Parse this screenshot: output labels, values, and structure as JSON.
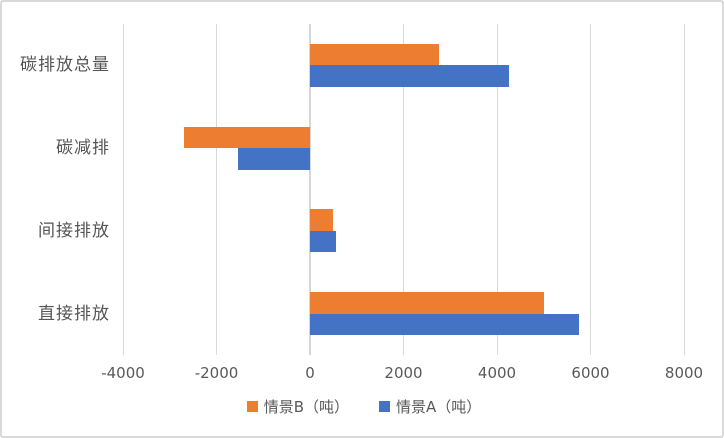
{
  "chart_data": {
    "type": "bar",
    "orientation": "horizontal",
    "title": "",
    "categories": [
      "碳排放总量",
      "碳减排",
      "间接排放",
      "直接排放"
    ],
    "series": [
      {
        "name": "情景B（吨）",
        "color": "#ED7D31",
        "values": [
          2750,
          -2700,
          500,
          5000
        ]
      },
      {
        "name": "情景A（吨）",
        "color": "#4472C4",
        "values": [
          4250,
          -1550,
          550,
          5750
        ]
      }
    ],
    "xlim": [
      -4000,
      8000
    ],
    "x_ticks": [
      -4000,
      -2000,
      0,
      2000,
      4000,
      6000,
      8000
    ],
    "x_tick_labels": [
      "-4000",
      "-2000",
      "0",
      "2000",
      "4000",
      "6000",
      "8000"
    ],
    "xlabel": "",
    "ylabel": "",
    "grid": "vertical",
    "legend_position": "bottom"
  },
  "colors": {
    "background": "#ffffff",
    "border": "#d9d9d9",
    "gridline": "#d9d9d9",
    "tick_text": "#595959",
    "category_text": "#555555",
    "series_b": "#ED7D31",
    "series_a": "#4472C4"
  }
}
